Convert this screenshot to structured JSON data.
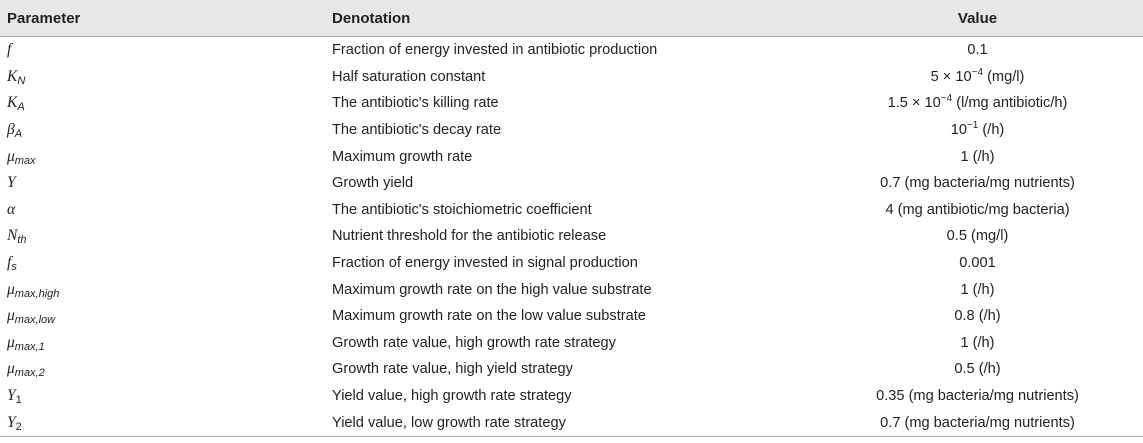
{
  "header": {
    "parameter": "Parameter",
    "denotation": "Denotation",
    "value": "Value"
  },
  "rows": [
    {
      "sym": "f",
      "sub": "",
      "sub_upright": false,
      "denotation": "Fraction of energy invested in antibiotic production",
      "value": "0.1",
      "value_sup": "",
      "value_rest": ""
    },
    {
      "sym": "K",
      "sub": "N",
      "sub_upright": false,
      "denotation": "Half saturation constant",
      "value": "5 × 10",
      "value_sup": "−4",
      "value_rest": " (mg/l)"
    },
    {
      "sym": "K",
      "sub": "A",
      "sub_upright": false,
      "denotation": "The antibiotic's killing rate",
      "value": "1.5 × 10",
      "value_sup": "−4",
      "value_rest": " (l/mg antibiotic/h)"
    },
    {
      "sym": "β",
      "sub": "A",
      "sub_upright": false,
      "denotation": "The antibiotic's decay rate",
      "value": "10",
      "value_sup": "−1",
      "value_rest": " (/h)"
    },
    {
      "sym": "μ",
      "sub": "max",
      "sub_upright": false,
      "denotation": "Maximum growth rate",
      "value": "1 (/h)",
      "value_sup": "",
      "value_rest": ""
    },
    {
      "sym": "Y",
      "sub": "",
      "sub_upright": false,
      "denotation": "Growth yield",
      "value": "0.7 (mg bacteria/mg nutrients)",
      "value_sup": "",
      "value_rest": ""
    },
    {
      "sym": "α",
      "sub": "",
      "sub_upright": false,
      "denotation": "The antibiotic's stoichiometric coefficient",
      "value": "4 (mg antibiotic/mg bacteria)",
      "value_sup": "",
      "value_rest": ""
    },
    {
      "sym": "N",
      "sub": "th",
      "sub_upright": false,
      "denotation": "Nutrient threshold for the antibiotic release",
      "value": "0.5 (mg/l)",
      "value_sup": "",
      "value_rest": ""
    },
    {
      "sym": "f",
      "sub": "s",
      "sub_upright": false,
      "denotation": "Fraction of energy invested in signal production",
      "value": "0.001",
      "value_sup": "",
      "value_rest": ""
    },
    {
      "sym": "μ",
      "sub": "max,high",
      "sub_upright": false,
      "denotation": "Maximum growth rate on the high value substrate",
      "value": "1 (/h)",
      "value_sup": "",
      "value_rest": ""
    },
    {
      "sym": "μ",
      "sub": "max,low",
      "sub_upright": false,
      "denotation": "Maximum growth rate on the low value substrate",
      "value": "0.8 (/h)",
      "value_sup": "",
      "value_rest": ""
    },
    {
      "sym": "μ",
      "sub": "max,1",
      "sub_upright": false,
      "denotation": "Growth rate value, high growth rate strategy",
      "value": "1 (/h)",
      "value_sup": "",
      "value_rest": ""
    },
    {
      "sym": "μ",
      "sub": "max,2",
      "sub_upright": false,
      "denotation": "Growth rate value, high yield strategy",
      "value": "0.5 (/h)",
      "value_sup": "",
      "value_rest": ""
    },
    {
      "sym": "Y",
      "sub": "1",
      "sub_upright": true,
      "denotation": "Yield value, high growth rate strategy",
      "value": "0.35 (mg bacteria/mg nutrients)",
      "value_sup": "",
      "value_rest": ""
    },
    {
      "sym": "Y",
      "sub": "2",
      "sub_upright": true,
      "denotation": "Yield value, low growth rate strategy",
      "value": "0.7 (mg bacteria/mg nutrients)",
      "value_sup": "",
      "value_rest": ""
    }
  ]
}
